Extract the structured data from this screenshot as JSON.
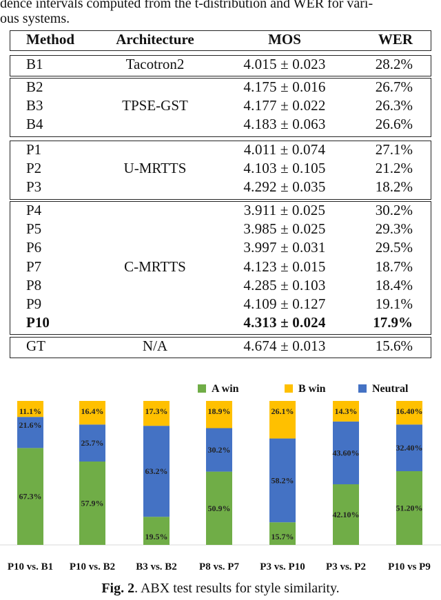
{
  "top_caption": {
    "line1": "dence intervals computed from the t-distribution and WER for vari-",
    "line2": "ous systems."
  },
  "table": {
    "headers": {
      "method": "Method",
      "architecture": "Architecture",
      "mos": "MOS",
      "wer": "WER"
    },
    "groups": [
      {
        "architecture": "Tacotron2",
        "rows": [
          {
            "method": "B1",
            "mos": "4.015 ± 0.023",
            "wer": "28.2%"
          }
        ]
      },
      {
        "architecture": "TPSE-GST",
        "rows": [
          {
            "method": "B2",
            "mos": "4.175 ± 0.016",
            "wer": "26.7%"
          },
          {
            "method": "B3",
            "mos": "4.177 ± 0.022",
            "wer": "26.3%"
          },
          {
            "method": "B4",
            "mos": "4.183 ± 0.063",
            "wer": "26.6%"
          }
        ]
      },
      {
        "architecture": "U-MRTTS",
        "rows": [
          {
            "method": "P1",
            "mos": "4.011 ± 0.074",
            "wer": "27.1%"
          },
          {
            "method": "P2",
            "mos": "4.103 ± 0.105",
            "wer": "21.2%"
          },
          {
            "method": "P3",
            "mos": "4.292 ± 0.035",
            "wer": "18.2%"
          }
        ]
      },
      {
        "architecture": "C-MRTTS",
        "rows": [
          {
            "method": "P4",
            "mos": "3.911 ± 0.025",
            "wer": "30.2%"
          },
          {
            "method": "P5",
            "mos": "3.985 ± 0.025",
            "wer": "29.3%"
          },
          {
            "method": "P6",
            "mos": "3.997 ± 0.031",
            "wer": "29.5%"
          },
          {
            "method": "P7",
            "mos": "4.123 ± 0.015",
            "wer": "18.7%"
          },
          {
            "method": "P8",
            "mos": "4.285 ± 0.103",
            "wer": "18.4%"
          },
          {
            "method": "P9",
            "mos": "4.109 ± 0.127",
            "wer": "19.1%"
          },
          {
            "method": "P10",
            "mos": "4.313 ± 0.024",
            "wer": "17.9%",
            "bold": true
          }
        ]
      },
      {
        "architecture": "N/A",
        "rows": [
          {
            "method": "GT",
            "mos": "4.674 ± 0.013",
            "wer": "15.6%"
          }
        ]
      }
    ]
  },
  "chart_data": {
    "type": "bar",
    "stacked": true,
    "title": "",
    "xlabel": "",
    "ylabel": "",
    "ylim": [
      0,
      100
    ],
    "legend_position": "top-right",
    "categories": [
      "P10 vs. B1",
      "P10 vs. B2",
      "B3 vs. B2",
      "P8 vs. P7",
      "P3 vs. P10",
      "P3 vs. P2",
      "P10 vs P9"
    ],
    "series": [
      {
        "name": "A win",
        "color": "#70ad47",
        "values": [
          67.3,
          57.9,
          19.5,
          50.9,
          15.7,
          42.1,
          51.2
        ],
        "labels": [
          "67.3%",
          "57.9%",
          "19.5%",
          "50.9%",
          "15.7%",
          "42.10%",
          "51.20%"
        ]
      },
      {
        "name": "Neutral",
        "color": "#4472c4",
        "values": [
          21.6,
          25.7,
          63.2,
          30.2,
          58.2,
          43.6,
          32.4
        ],
        "labels": [
          "21.6%",
          "25.7%",
          "63.2%",
          "30.2%",
          "58.2%",
          "43.60%",
          "32.40%"
        ]
      },
      {
        "name": "B win",
        "color": "#ffc000",
        "values": [
          11.1,
          16.4,
          17.3,
          18.9,
          26.1,
          14.3,
          16.4
        ],
        "labels": [
          "11.1%",
          "16.4%",
          "17.3%",
          "18.9%",
          "26.1%",
          "14.3%",
          "16.40%"
        ]
      }
    ],
    "legend_order": [
      "A win",
      "B win",
      "Neutral"
    ]
  },
  "figure_caption": {
    "label": "Fig. 2",
    "text": ". ABX test results for style similarity."
  }
}
